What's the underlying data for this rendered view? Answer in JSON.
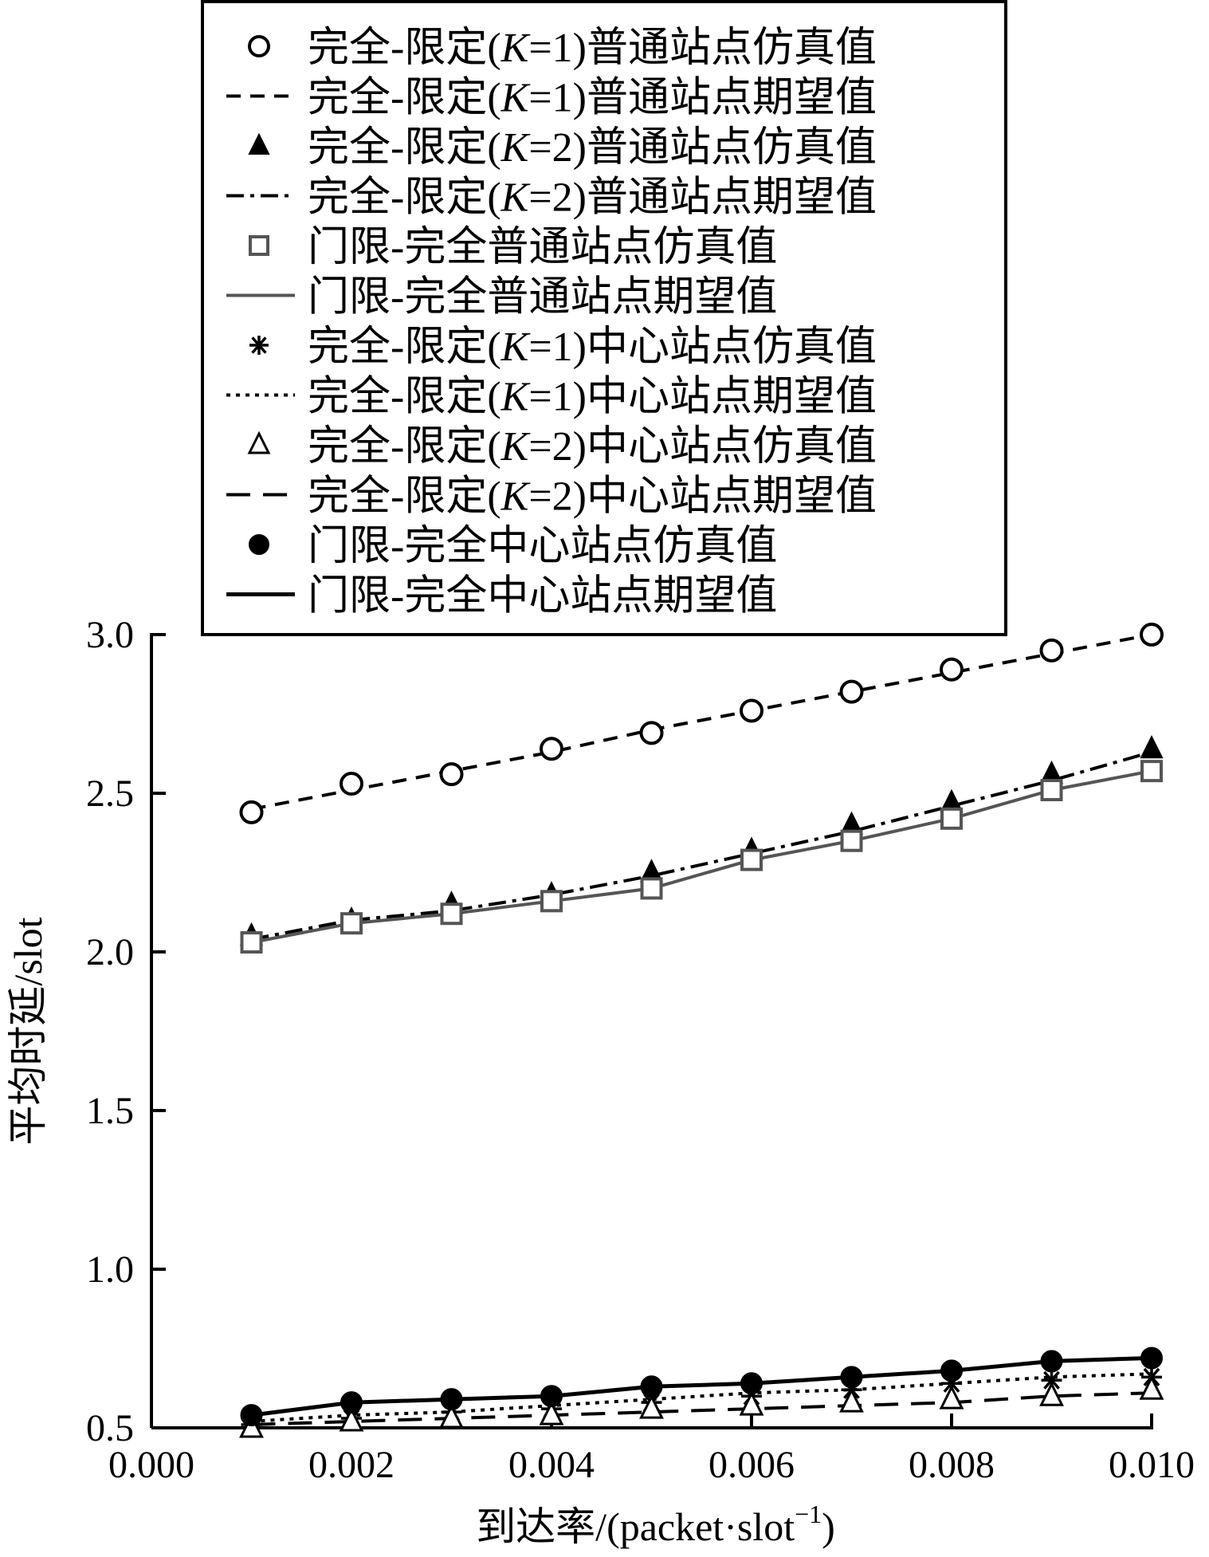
{
  "chart_data": {
    "type": "line",
    "title": "",
    "xlabel": "到达率/(packet·slot⁻¹)",
    "xlabel_parts": {
      "main": "到达率/(packet·slot",
      "sup": "−1",
      "close": ")"
    },
    "ylabel": "平均时延/slot",
    "xlim": [
      0.0,
      0.01
    ],
    "ylim": [
      0.5,
      3.0
    ],
    "xticks": [
      "0.000",
      "0.002",
      "0.004",
      "0.006",
      "0.008",
      "0.010"
    ],
    "yticks": [
      "0.5",
      "1.0",
      "1.5",
      "2.0",
      "2.5",
      "3.0"
    ],
    "grid": false,
    "legend_position": "top",
    "x": [
      0.001,
      0.002,
      0.003,
      0.004,
      0.005,
      0.006,
      0.007,
      0.008,
      0.009,
      0.01
    ],
    "series": [
      {
        "label_a": "完全-限定(",
        "label_k": "K",
        "label_b": "=1)普通站点仿真值",
        "style": "marker",
        "marker": "circle-open",
        "color": "#000000",
        "values": [
          2.44,
          2.53,
          2.56,
          2.64,
          2.69,
          2.76,
          2.82,
          2.89,
          2.95,
          3.0
        ]
      },
      {
        "label_a": "完全-限定(",
        "label_k": "K",
        "label_b": "=1)普通站点期望值",
        "style": "line",
        "dash": "18,12",
        "color": "#000000",
        "width": 4,
        "values": [
          2.45,
          2.51,
          2.57,
          2.63,
          2.7,
          2.76,
          2.82,
          2.88,
          2.94,
          3.0
        ]
      },
      {
        "label_a": "完全-限定(",
        "label_k": "K",
        "label_b": "=2)普通站点仿真值",
        "style": "marker",
        "marker": "triangle-filled",
        "color": "#000000",
        "values": [
          2.05,
          2.1,
          2.15,
          2.18,
          2.25,
          2.32,
          2.4,
          2.47,
          2.56,
          2.64
        ]
      },
      {
        "label_a": "完全-限定(",
        "label_k": "K",
        "label_b": "=2)普通站点期望值",
        "style": "line",
        "dash": "22,8,5,8",
        "color": "#000000",
        "width": 4,
        "values": [
          2.04,
          2.1,
          2.13,
          2.18,
          2.24,
          2.31,
          2.38,
          2.46,
          2.54,
          2.63
        ]
      },
      {
        "label": "门限-完全普通站点仿真值",
        "style": "marker",
        "marker": "square-open",
        "color": "#555555",
        "values": [
          2.03,
          2.09,
          2.12,
          2.16,
          2.2,
          2.29,
          2.35,
          2.42,
          2.51,
          2.57
        ]
      },
      {
        "label": "门限-完全普通站点期望值",
        "style": "line",
        "dash": "",
        "color": "#555555",
        "width": 4,
        "values": [
          2.03,
          2.09,
          2.12,
          2.16,
          2.2,
          2.29,
          2.35,
          2.42,
          2.51,
          2.57
        ]
      },
      {
        "label_a": "完全-限定(",
        "label_k": "K",
        "label_b": "=1)中心站点仿真值",
        "style": "marker",
        "marker": "asterisk",
        "color": "#000000",
        "values": [
          0.51,
          0.53,
          0.55,
          0.56,
          0.58,
          0.6,
          0.62,
          0.64,
          0.65,
          0.66
        ]
      },
      {
        "label_a": "完全-限定(",
        "label_k": "K",
        "label_b": "=1)中心站点期望值",
        "style": "line",
        "dash": "5,7",
        "color": "#000000",
        "width": 4,
        "values": [
          0.52,
          0.54,
          0.55,
          0.57,
          0.59,
          0.61,
          0.62,
          0.64,
          0.66,
          0.67
        ]
      },
      {
        "label_a": "完全-限定(",
        "label_k": "K",
        "label_b": "=2)中心站点仿真值",
        "style": "marker",
        "marker": "triangle-open",
        "color": "#000000",
        "values": [
          0.5,
          0.52,
          0.53,
          0.54,
          0.56,
          0.57,
          0.58,
          0.59,
          0.6,
          0.62
        ]
      },
      {
        "label_a": "完全-限定(",
        "label_k": "K",
        "label_b": "=2)中心站点期望值",
        "style": "line",
        "dash": "30,16",
        "color": "#000000",
        "width": 4,
        "values": [
          0.51,
          0.52,
          0.53,
          0.54,
          0.55,
          0.56,
          0.57,
          0.58,
          0.6,
          0.61
        ]
      },
      {
        "label": "门限-完全中心站点仿真值",
        "style": "marker",
        "marker": "circle-filled",
        "color": "#000000",
        "values": [
          0.54,
          0.58,
          0.59,
          0.6,
          0.63,
          0.64,
          0.66,
          0.68,
          0.71,
          0.72
        ]
      },
      {
        "label": "门限-完全中心站点期望值",
        "style": "line",
        "dash": "",
        "color": "#000000",
        "width": 5,
        "values": [
          0.54,
          0.58,
          0.59,
          0.6,
          0.63,
          0.64,
          0.66,
          0.68,
          0.71,
          0.72
        ]
      }
    ]
  }
}
